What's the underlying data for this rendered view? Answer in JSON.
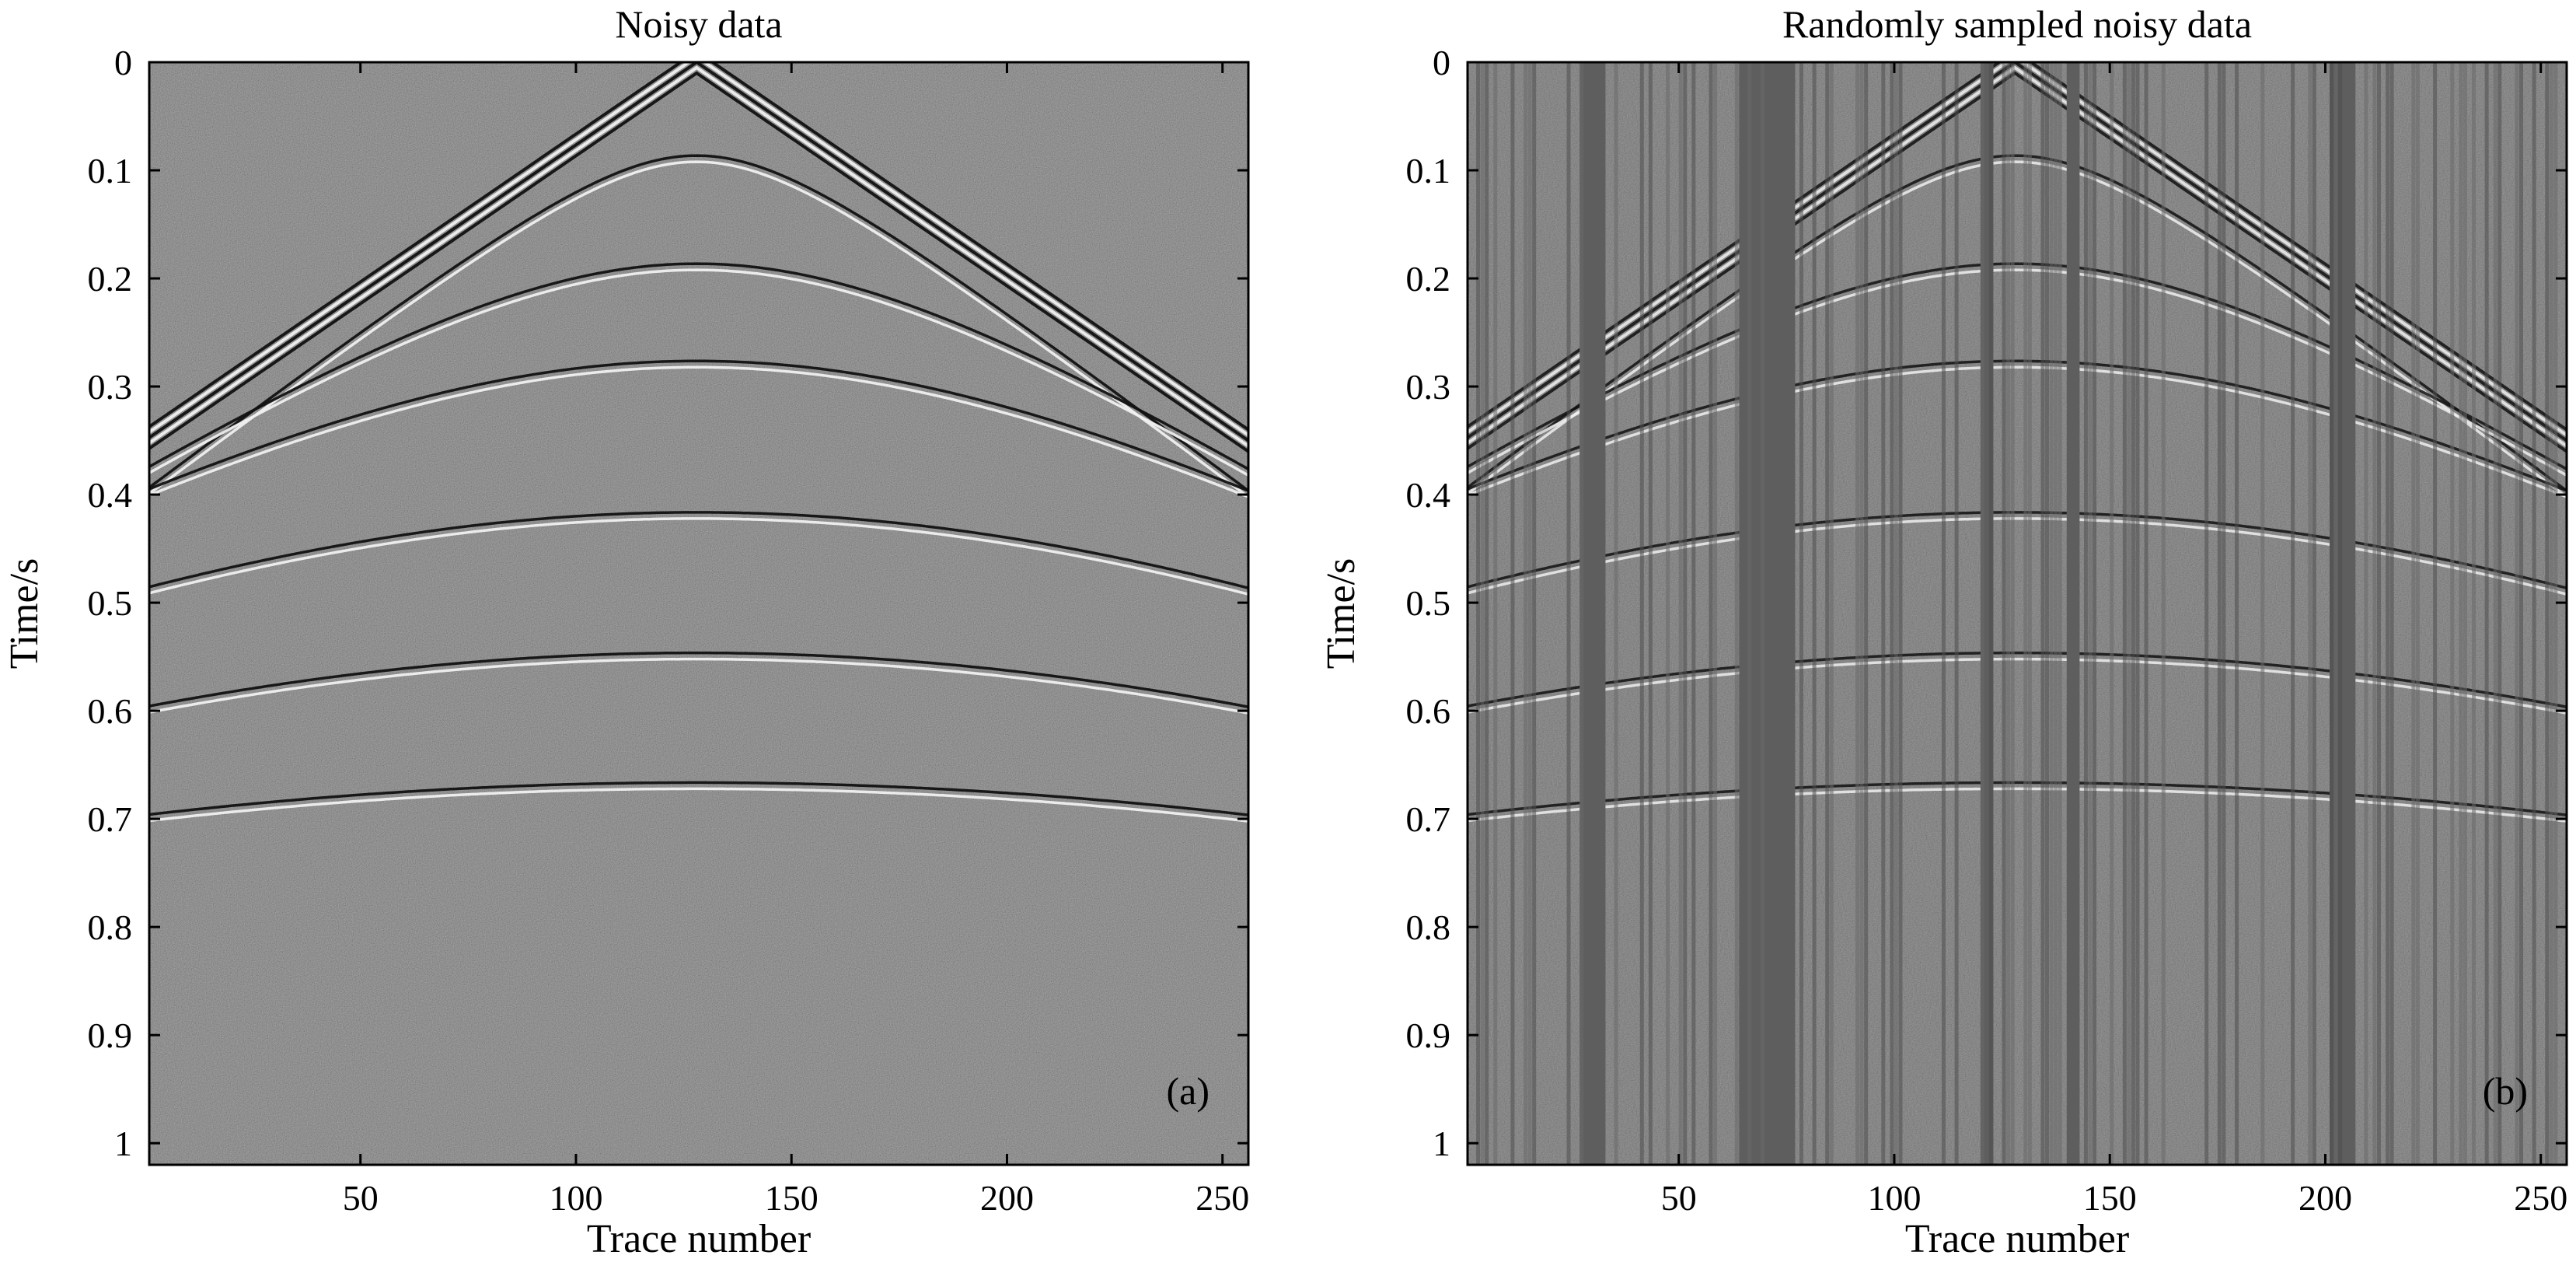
{
  "chart_data": [
    {
      "type": "heatmap",
      "title": "Noisy data",
      "xlabel": "Trace number",
      "ylabel": "Time/s",
      "panel_tag": "(a)",
      "xlim": [
        1,
        256
      ],
      "ylim": [
        0,
        1.02
      ],
      "y_reversed": true,
      "x_ticks": [
        50,
        100,
        150,
        200,
        250
      ],
      "x_tick_labels": [
        "50",
        "100",
        "150",
        "200",
        "250"
      ],
      "y_ticks": [
        0,
        0.1,
        0.2,
        0.3,
        0.4,
        0.5,
        0.6,
        0.7,
        0.8,
        0.9,
        1.0
      ],
      "y_tick_labels": [
        "0",
        "0.1",
        "0.2",
        "0.3",
        "0.4",
        "0.5",
        "0.6",
        "0.7",
        "0.8",
        "0.9",
        "1"
      ],
      "colormap": "gray",
      "background_color": "#5a5a5a",
      "events": [
        {
          "kind": "linear",
          "apex_trace": 128,
          "apex_time": 0.0,
          "edge_time": 0.35
        },
        {
          "kind": "hyperbolic",
          "apex_trace": 128,
          "apex_time": 0.09,
          "edge_time": 0.4
        },
        {
          "kind": "hyperbolic",
          "apex_trace": 128,
          "apex_time": 0.19,
          "edge_time": 0.38
        },
        {
          "kind": "hyperbolic",
          "apex_trace": 128,
          "apex_time": 0.28,
          "edge_time": 0.4
        },
        {
          "kind": "hyperbolic",
          "apex_trace": 128,
          "apex_time": 0.42,
          "edge_time": 0.49
        },
        {
          "kind": "hyperbolic",
          "apex_trace": 128,
          "apex_time": 0.55,
          "edge_time": 0.6
        },
        {
          "kind": "hyperbolic",
          "apex_trace": 128,
          "apex_time": 0.67,
          "edge_time": 0.7
        }
      ]
    },
    {
      "type": "heatmap",
      "title": "Randomly sampled noisy data",
      "xlabel": "Trace number",
      "ylabel": "Time/s",
      "panel_tag": "(b)",
      "xlim": [
        1,
        256
      ],
      "ylim": [
        0,
        1.02
      ],
      "y_reversed": true,
      "x_ticks": [
        50,
        100,
        150,
        200,
        250
      ],
      "x_tick_labels": [
        "50",
        "100",
        "150",
        "200",
        "250"
      ],
      "y_ticks": [
        0,
        0.1,
        0.2,
        0.3,
        0.4,
        0.5,
        0.6,
        0.7,
        0.8,
        0.9,
        1.0
      ],
      "y_tick_labels": [
        "0",
        "0.1",
        "0.2",
        "0.3",
        "0.4",
        "0.5",
        "0.6",
        "0.7",
        "0.8",
        "0.9",
        "1"
      ],
      "colormap": "gray",
      "background_color": "#5c5c5c",
      "missing_trace_ranges": [
        [
          27,
          32
        ],
        [
          64,
          76
        ],
        [
          120,
          122
        ],
        [
          140,
          142
        ],
        [
          201,
          206
        ]
      ],
      "events": [
        {
          "kind": "linear",
          "apex_trace": 128,
          "apex_time": 0.0,
          "edge_time": 0.35
        },
        {
          "kind": "hyperbolic",
          "apex_trace": 128,
          "apex_time": 0.09,
          "edge_time": 0.4
        },
        {
          "kind": "hyperbolic",
          "apex_trace": 128,
          "apex_time": 0.19,
          "edge_time": 0.38
        },
        {
          "kind": "hyperbolic",
          "apex_trace": 128,
          "apex_time": 0.28,
          "edge_time": 0.4
        },
        {
          "kind": "hyperbolic",
          "apex_trace": 128,
          "apex_time": 0.42,
          "edge_time": 0.49
        },
        {
          "kind": "hyperbolic",
          "apex_trace": 128,
          "apex_time": 0.55,
          "edge_time": 0.6
        },
        {
          "kind": "hyperbolic",
          "apex_trace": 128,
          "apex_time": 0.67,
          "edge_time": 0.7
        }
      ]
    }
  ]
}
